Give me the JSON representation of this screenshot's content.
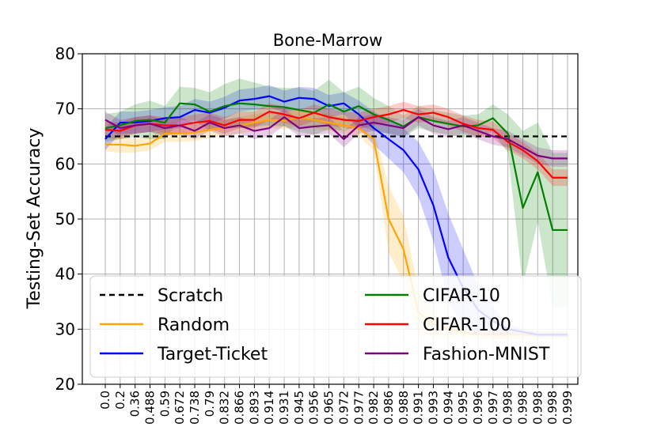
{
  "chart_data": {
    "type": "line",
    "title": "Bone-Marrow",
    "xlabel": "",
    "ylabel": "Testing-Set Accuracy",
    "ylim": [
      20,
      80
    ],
    "yticks": [
      20,
      30,
      40,
      50,
      60,
      70,
      80
    ],
    "grid": true,
    "legend_position": "bottom",
    "categories": [
      "0.0",
      "0.2",
      "0.36",
      "0.488",
      "0.59",
      "0.672",
      "0.738",
      "0.79",
      "0.832",
      "0.866",
      "0.893",
      "0.914",
      "0.931",
      "0.945",
      "0.956",
      "0.965",
      "0.972",
      "0.977",
      "0.982",
      "0.986",
      "0.988",
      "0.991",
      "0.993",
      "0.994",
      "0.995",
      "0.996",
      "0.997",
      "0.998",
      "0.998",
      "0.998",
      "0.998",
      "0.999"
    ],
    "series": [
      {
        "name": "Scratch",
        "color": "#000000",
        "dashed": true,
        "values": [
          65,
          65,
          65,
          65,
          65,
          65,
          65,
          65,
          65,
          65,
          65,
          65,
          65,
          65,
          65,
          65,
          65,
          65,
          65,
          65,
          65,
          65,
          65,
          65,
          65,
          65,
          65,
          65,
          65,
          65,
          65,
          65
        ]
      },
      {
        "name": "Random",
        "color": "#ffa500",
        "dashed": false,
        "values": [
          63.5,
          63.5,
          63.3,
          63.7,
          65.5,
          65.5,
          65.7,
          66.2,
          66.5,
          67.0,
          67.5,
          68.0,
          67.8,
          68.5,
          68.0,
          67.5,
          67.0,
          66.5,
          64.5,
          50.0,
          44.5,
          33.0,
          31.0,
          30.0,
          29.5,
          29.0,
          29.0,
          29.0,
          29.0,
          29.0,
          29.0,
          29.0
        ],
        "band": [
          1.2,
          1.5,
          1.2,
          1.2,
          1.5,
          1.5,
          1.5,
          1.5,
          1.5,
          1.5,
          1.5,
          1.5,
          1.5,
          1.5,
          1.5,
          1.5,
          1.5,
          1.5,
          2.0,
          6.0,
          6.0,
          4.0,
          2.5,
          1.5,
          1.0,
          0.8,
          0.8,
          0.8,
          0.8,
          0.8,
          0.8,
          0.8
        ]
      },
      {
        "name": "Target-Ticket",
        "color": "#0000ff",
        "dashed": false,
        "values": [
          64.5,
          67.5,
          67.5,
          67.8,
          68.3,
          68.5,
          69.8,
          69.3,
          70.2,
          71.5,
          71.8,
          72.3,
          71.3,
          72.0,
          71.8,
          70.5,
          71.0,
          69.0,
          66.5,
          64.5,
          62.5,
          59.0,
          52.5,
          43.0,
          37.5,
          33.5,
          31.5,
          30.0,
          29.5,
          29.0,
          29.0,
          29.0
        ],
        "band": [
          2.0,
          2.0,
          2.0,
          2.0,
          2.0,
          2.0,
          2.0,
          2.0,
          2.0,
          2.0,
          2.0,
          2.0,
          2.0,
          2.0,
          2.0,
          2.0,
          2.0,
          2.5,
          3.0,
          3.5,
          4.0,
          5.0,
          6.5,
          8.0,
          7.0,
          4.5,
          2.5,
          1.0,
          0.5,
          0.5,
          0.5,
          0.5
        ]
      },
      {
        "name": "CIFAR-10",
        "color": "#008000",
        "dashed": false,
        "values": [
          66.5,
          67.0,
          67.8,
          68.0,
          67.5,
          71.0,
          70.8,
          69.5,
          70.5,
          71.0,
          70.8,
          70.5,
          70.3,
          69.8,
          69.3,
          70.8,
          69.5,
          70.5,
          69.0,
          68.0,
          66.8,
          68.5,
          67.8,
          67.3,
          66.8,
          67.0,
          68.3,
          65.5,
          52.0,
          58.5,
          48.0,
          48.0
        ],
        "band": [
          2.5,
          2.5,
          3.0,
          3.5,
          3.0,
          3.0,
          3.0,
          3.5,
          4.0,
          4.5,
          4.0,
          3.5,
          3.5,
          4.0,
          4.0,
          4.5,
          3.5,
          3.5,
          3.0,
          2.5,
          2.0,
          2.0,
          2.0,
          2.0,
          2.0,
          2.0,
          2.5,
          3.5,
          14.0,
          9.0,
          14.0,
          14.0
        ]
      },
      {
        "name": "CIFAR-100",
        "color": "#ff0000",
        "dashed": false,
        "values": [
          66.2,
          66.0,
          67.0,
          67.3,
          67.0,
          67.0,
          67.5,
          67.8,
          67.0,
          68.0,
          68.0,
          69.5,
          69.0,
          68.3,
          69.3,
          68.5,
          68.0,
          67.8,
          68.5,
          69.0,
          69.8,
          69.0,
          69.3,
          68.5,
          67.3,
          66.5,
          66.2,
          64.0,
          62.5,
          60.5,
          57.5,
          57.5
        ],
        "band": [
          1.5,
          1.5,
          1.5,
          1.5,
          1.5,
          1.5,
          1.5,
          1.5,
          1.5,
          1.5,
          1.5,
          1.5,
          1.5,
          1.5,
          1.5,
          1.5,
          1.5,
          1.5,
          1.5,
          1.5,
          1.5,
          1.5,
          1.5,
          1.5,
          1.5,
          1.5,
          1.5,
          1.5,
          1.5,
          1.5,
          1.5,
          1.5
        ]
      },
      {
        "name": "Fashion-MNIST",
        "color": "#800080",
        "dashed": false,
        "values": [
          68.0,
          66.5,
          67.0,
          67.3,
          66.5,
          67.0,
          66.0,
          67.5,
          66.5,
          67.0,
          66.0,
          66.5,
          68.5,
          66.5,
          66.8,
          67.0,
          64.5,
          67.0,
          67.5,
          67.0,
          66.5,
          68.5,
          67.0,
          66.3,
          67.0,
          66.0,
          65.0,
          64.5,
          63.0,
          61.5,
          61.0,
          61.0
        ],
        "band": [
          1.5,
          1.5,
          1.5,
          1.5,
          1.5,
          1.5,
          1.5,
          1.5,
          1.5,
          1.5,
          1.5,
          1.5,
          1.5,
          1.5,
          1.5,
          1.5,
          1.5,
          1.5,
          1.5,
          1.5,
          1.5,
          1.5,
          1.5,
          1.5,
          1.5,
          1.5,
          1.5,
          1.5,
          1.5,
          1.5,
          1.5,
          1.5
        ]
      }
    ],
    "legend_order": [
      "Scratch",
      "CIFAR-10",
      "Random",
      "CIFAR-100",
      "Target-Ticket",
      "Fashion-MNIST"
    ]
  }
}
